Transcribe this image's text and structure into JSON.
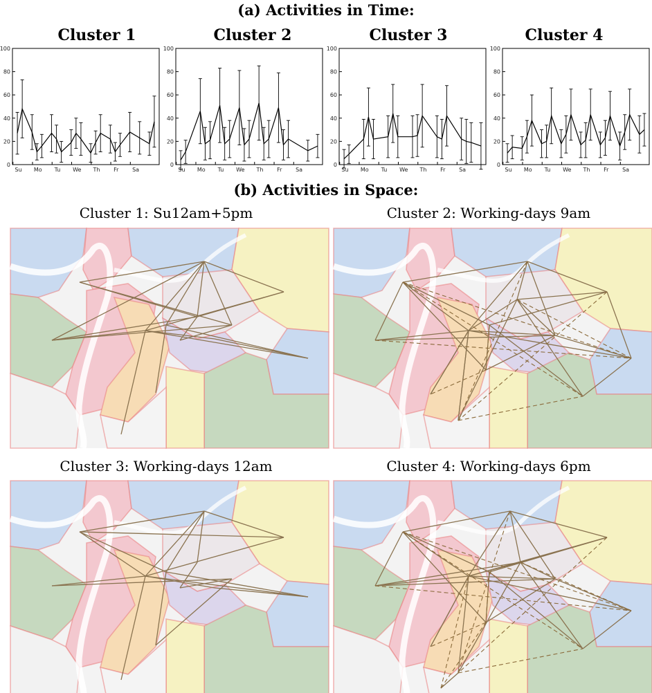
{
  "section_a_title": "(a) Activities in Time:",
  "section_b_title": "(b) Activities in Space:",
  "chart_data": [
    {
      "type": "line",
      "title": "Cluster 1",
      "ylim": [
        0,
        100
      ],
      "yticks": [
        0,
        20,
        40,
        60,
        80,
        100
      ],
      "xticks": [
        "Su",
        "Mo",
        "Tu",
        "We",
        "Th",
        "Fr",
        "Sa"
      ],
      "x": [
        0.5,
        1.0,
        2.0,
        2.5,
        3.0,
        4.0,
        4.5,
        5.0,
        6.0,
        6.5,
        7.0,
        8.0,
        8.5,
        9.0,
        10.0,
        10.5,
        11.0,
        12.0,
        13.0,
        14.0,
        14.5
      ],
      "y": [
        27,
        48,
        28,
        11,
        16,
        27,
        22,
        11,
        19,
        27,
        22,
        10,
        19,
        27,
        22,
        11,
        17,
        28,
        23,
        18,
        37
      ],
      "err": [
        18,
        25,
        15,
        7,
        10,
        16,
        12,
        9,
        11,
        13,
        14,
        8,
        10,
        16,
        12,
        8,
        10,
        17,
        14,
        10,
        22
      ],
      "legend": "none",
      "grid": false
    },
    {
      "type": "line",
      "title": "Cluster 2",
      "ylim": [
        0,
        100
      ],
      "yticks": [
        0,
        20,
        40,
        60,
        80,
        100
      ],
      "xticks": [
        "Su",
        "Mo",
        "Tu",
        "We",
        "Th",
        "Fr",
        "Sa"
      ],
      "x": [
        0.5,
        1.0,
        2.5,
        3.0,
        3.5,
        4.5,
        5.0,
        5.5,
        6.5,
        7.0,
        7.5,
        8.5,
        9.0,
        9.5,
        10.5,
        11.0,
        11.5,
        13.5,
        14.5
      ],
      "y": [
        4,
        11,
        46,
        18,
        21,
        51,
        18,
        22,
        49,
        17,
        22,
        53,
        18,
        22,
        49,
        17,
        22,
        12,
        16
      ],
      "err": [
        8,
        10,
        28,
        14,
        16,
        32,
        14,
        16,
        32,
        14,
        16,
        32,
        14,
        16,
        30,
        13,
        16,
        9,
        10
      ],
      "legend": "none",
      "grid": false
    },
    {
      "type": "line",
      "title": "Cluster 3",
      "ylim": [
        0,
        100
      ],
      "yticks": [
        0,
        20,
        40,
        60,
        80,
        100
      ],
      "xticks": [
        "Su",
        "Mo",
        "Tu",
        "We",
        "Th",
        "Fr",
        "Sa"
      ],
      "x": [
        0.5,
        1.0,
        2.5,
        3.0,
        3.5,
        5.0,
        5.5,
        6.0,
        7.5,
        8.0,
        8.5,
        10.0,
        10.5,
        11.0,
        12.5,
        13.0,
        13.5,
        14.5
      ],
      "y": [
        5,
        9,
        22,
        41,
        22,
        24,
        44,
        24,
        24,
        25,
        42,
        24,
        22,
        42,
        22,
        20,
        19,
        16
      ],
      "err": [
        8,
        8,
        17,
        25,
        17,
        18,
        25,
        18,
        18,
        18,
        27,
        18,
        17,
        26,
        18,
        19,
        17,
        20
      ],
      "legend": "none",
      "grid": false
    },
    {
      "type": "line",
      "title": "Cluster 4",
      "ylim": [
        0,
        100
      ],
      "yticks": [
        0,
        20,
        40,
        60,
        80,
        100
      ],
      "xticks": [
        "Su",
        "Mo",
        "Tu",
        "We",
        "Th",
        "Fr",
        "Sa"
      ],
      "x": [
        0.5,
        1.0,
        2.0,
        2.5,
        3.0,
        4.0,
        4.5,
        5.0,
        6.0,
        6.5,
        7.0,
        8.0,
        8.5,
        9.0,
        10.0,
        10.5,
        11.0,
        12.0,
        12.5,
        13.0,
        14.0,
        14.5
      ],
      "y": [
        10,
        15,
        14,
        24,
        38,
        18,
        20,
        42,
        18,
        26,
        43,
        17,
        21,
        43,
        17,
        23,
        42,
        16,
        28,
        43,
        26,
        30
      ],
      "err": [
        8,
        10,
        10,
        14,
        22,
        12,
        14,
        24,
        12,
        16,
        22,
        11,
        15,
        22,
        11,
        15,
        21,
        12,
        15,
        22,
        16,
        14
      ],
      "legend": "none",
      "grid": false
    }
  ],
  "maps": [
    {
      "title": "Cluster 1: Su12am+5pm",
      "dashed": false
    },
    {
      "title": "Cluster 2: Working-days 9am",
      "dashed": true
    },
    {
      "title": "Cluster 3: Working-days 12am",
      "dashed": false
    },
    {
      "title": "Cluster 4: Working-days 6pm",
      "dashed": true
    }
  ],
  "colors": {
    "edge": "#8a7350",
    "dashed_edge": "#8a6a3a",
    "river": "#d4e2ea",
    "zone_blue": "#c9daf0",
    "zone_pink": "#f3c8cf",
    "zone_yellow": "#f6f2c2",
    "zone_green": "#c6d9bf",
    "zone_orange": "#f7dcb5",
    "zone_lavender": "#dcd6ec",
    "boundary": "#ea7d7d"
  }
}
